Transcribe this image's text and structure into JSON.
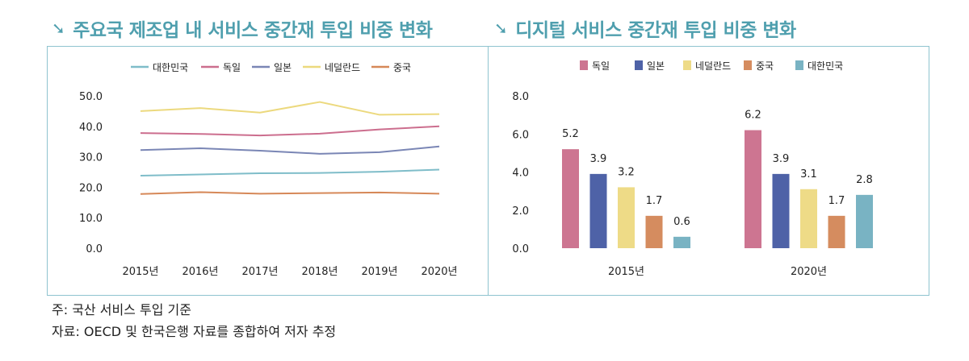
{
  "titles": {
    "left": "주요국 제조업 내 서비스 중간재 투입 비중 변화",
    "right": "디지털 서비스 중간재 투입 비중 변화",
    "arrow_icon": "arrow-down-right-icon"
  },
  "notes": {
    "line1": "주: 국산 서비스 투입 기준",
    "line2": "자료: OECD 및 한국은행 자료를 종합하여 저자 추정"
  },
  "chart_data": [
    {
      "type": "line",
      "x": [
        "2015년",
        "2016년",
        "2017년",
        "2018년",
        "2019년",
        "2020년"
      ],
      "ylim": [
        0,
        50
      ],
      "yticks": [
        "0.0",
        "10.0",
        "20.0",
        "30.0",
        "40.0",
        "50.0"
      ],
      "grid": false,
      "legend_position": "top",
      "series": [
        {
          "name": "대한민국",
          "color": "#7fbdc9",
          "values": [
            23.8,
            24.2,
            24.6,
            24.7,
            25.1,
            25.8
          ]
        },
        {
          "name": "독일",
          "color": "#cc6e8e",
          "values": [
            37.8,
            37.5,
            37.0,
            37.6,
            39.0,
            40.0
          ]
        },
        {
          "name": "일본",
          "color": "#7a86b5",
          "values": [
            32.2,
            32.8,
            32.0,
            31.0,
            31.5,
            33.4
          ]
        },
        {
          "name": "네덜란드",
          "color": "#ecd97e",
          "values": [
            45.0,
            46.0,
            44.5,
            48.0,
            43.8,
            44.0
          ]
        },
        {
          "name": "중국",
          "color": "#d68858",
          "values": [
            17.8,
            18.4,
            17.9,
            18.1,
            18.3,
            17.9
          ]
        }
      ]
    },
    {
      "type": "bar",
      "categories": [
        "2015년",
        "2020년"
      ],
      "ylim": [
        0,
        8
      ],
      "yticks": [
        "0.0",
        "2.0",
        "4.0",
        "6.0",
        "8.0"
      ],
      "grid": false,
      "legend_position": "top",
      "series": [
        {
          "name": "독일",
          "color": "#cd7591",
          "values": [
            5.2,
            6.2
          ],
          "labels": [
            "5.2",
            "6.2"
          ]
        },
        {
          "name": "일본",
          "color": "#4e62a7",
          "values": [
            3.9,
            3.9
          ],
          "labels": [
            "3.9",
            "3.9"
          ]
        },
        {
          "name": "네덜란드",
          "color": "#eedb87",
          "values": [
            3.2,
            3.1
          ],
          "labels": [
            "3.2",
            "3.1"
          ]
        },
        {
          "name": "중국",
          "color": "#d58c5f",
          "values": [
            1.7,
            1.7
          ],
          "labels": [
            "1.7",
            "1.7"
          ]
        },
        {
          "name": "대한민국",
          "color": "#79b3c3",
          "values": [
            0.6,
            2.8
          ],
          "labels": [
            "0.6",
            "2.8"
          ]
        }
      ]
    }
  ]
}
